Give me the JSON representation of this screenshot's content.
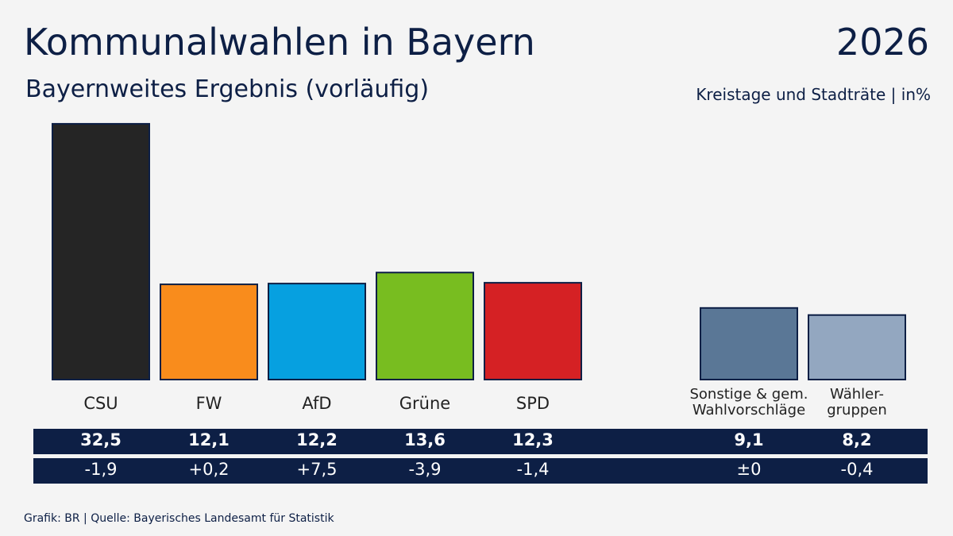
{
  "chart_data": {
    "type": "bar",
    "title": "Kommunalwahlen in Bayern",
    "year": "2026",
    "subtitle": "Bayernweites Ergebnis (vorläufig)",
    "unit_note": "Kreistage und Stadträte | in%",
    "categories": [
      "CSU",
      "FW",
      "AfD",
      "Grüne",
      "SPD",
      "Sonstige & gem.\nWahlvorschläge",
      "Wähler-\ngruppen"
    ],
    "values": [
      32.5,
      12.1,
      12.2,
      13.6,
      12.3,
      9.1,
      8.2
    ],
    "value_labels": [
      "32,5",
      "12,1",
      "12,2",
      "13,6",
      "12,3",
      "9,1",
      "8,2"
    ],
    "changes": [
      -1.9,
      0.2,
      7.5,
      -3.9,
      -1.4,
      0,
      -0.4
    ],
    "change_labels": [
      "-1,9",
      "+0,2",
      "+7,5",
      "-3,9",
      "-1,4",
      "±0",
      "-0,4"
    ],
    "colors": [
      "#252525",
      "#f98c1c",
      "#06a0e0",
      "#78bd20",
      "#d52124",
      "#5a7796",
      "#93a7c0"
    ],
    "source": "Grafik: BR | Quelle: Bayerisches Landesamt für Statistik"
  }
}
